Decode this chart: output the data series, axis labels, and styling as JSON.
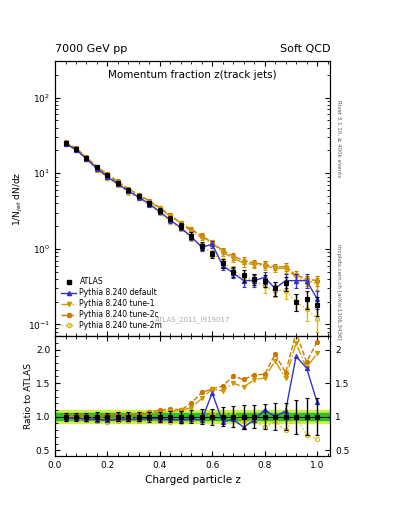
{
  "title_top_left": "7000 GeV pp",
  "title_top_right": "Soft QCD",
  "plot_title": "Momentum fraction z(track jets)",
  "ylabel_main": "1/N$_{jet}$ dN/dz",
  "ylabel_ratio": "Ratio to ATLAS",
  "xlabel": "Charged particle z",
  "watermark": "ATLAS_2011_I919017",
  "right_label": "Rivet 3.1.10, ≥ 400k events",
  "right_label2": "mcplots.cern.ch [arXiv:1306.3436]",
  "z_values": [
    0.04,
    0.08,
    0.12,
    0.16,
    0.2,
    0.24,
    0.28,
    0.32,
    0.36,
    0.4,
    0.44,
    0.48,
    0.52,
    0.56,
    0.6,
    0.64,
    0.68,
    0.72,
    0.76,
    0.8,
    0.84,
    0.88,
    0.92,
    0.96,
    1.0
  ],
  "atlas_y": [
    25.0,
    21.0,
    16.0,
    12.0,
    9.5,
    7.5,
    6.0,
    5.0,
    4.0,
    3.2,
    2.5,
    2.0,
    1.5,
    1.1,
    0.85,
    0.65,
    0.5,
    0.45,
    0.4,
    0.38,
    0.3,
    0.35,
    0.2,
    0.22,
    0.18
  ],
  "atlas_yerr": [
    1.5,
    1.2,
    1.0,
    0.8,
    0.6,
    0.5,
    0.4,
    0.35,
    0.3,
    0.25,
    0.2,
    0.18,
    0.15,
    0.12,
    0.1,
    0.09,
    0.08,
    0.08,
    0.07,
    0.07,
    0.06,
    0.07,
    0.05,
    0.06,
    0.05
  ],
  "pythia_default_y": [
    24.5,
    20.5,
    15.5,
    11.5,
    9.0,
    7.2,
    5.8,
    4.8,
    3.9,
    3.1,
    2.4,
    1.9,
    1.45,
    1.05,
    1.15,
    0.6,
    0.48,
    0.38,
    0.38,
    0.42,
    0.3,
    0.38,
    0.38,
    0.38,
    0.22
  ],
  "pythia_default_yerr": [
    1.2,
    1.0,
    0.9,
    0.7,
    0.55,
    0.45,
    0.38,
    0.32,
    0.28,
    0.22,
    0.18,
    0.15,
    0.13,
    0.1,
    0.12,
    0.08,
    0.07,
    0.07,
    0.07,
    0.08,
    0.06,
    0.08,
    0.08,
    0.08,
    0.06
  ],
  "tune1_y": [
    25.0,
    21.0,
    15.8,
    11.8,
    9.3,
    7.4,
    5.9,
    5.0,
    4.2,
    3.4,
    2.7,
    2.2,
    1.7,
    1.4,
    1.2,
    0.9,
    0.75,
    0.65,
    0.62,
    0.6,
    0.55,
    0.55,
    0.42,
    0.38,
    0.35
  ],
  "tune1_yerr": [
    1.2,
    1.0,
    0.9,
    0.7,
    0.55,
    0.45,
    0.38,
    0.32,
    0.28,
    0.22,
    0.18,
    0.15,
    0.13,
    0.1,
    0.1,
    0.09,
    0.08,
    0.07,
    0.07,
    0.07,
    0.06,
    0.07,
    0.06,
    0.06,
    0.06
  ],
  "tune2c_y": [
    25.5,
    21.5,
    16.2,
    12.2,
    9.7,
    7.8,
    6.2,
    5.2,
    4.3,
    3.5,
    2.8,
    2.2,
    1.8,
    1.5,
    1.2,
    0.95,
    0.8,
    0.7,
    0.65,
    0.62,
    0.58,
    0.58,
    0.45,
    0.4,
    0.38
  ],
  "tune2c_yerr": [
    1.2,
    1.0,
    0.9,
    0.7,
    0.55,
    0.45,
    0.38,
    0.32,
    0.28,
    0.22,
    0.18,
    0.15,
    0.13,
    0.1,
    0.1,
    0.09,
    0.08,
    0.07,
    0.07,
    0.07,
    0.06,
    0.07,
    0.06,
    0.06,
    0.06
  ],
  "tune2m_y": [
    24.0,
    20.2,
    15.2,
    11.2,
    8.8,
    7.0,
    5.6,
    4.7,
    3.8,
    3.0,
    2.3,
    1.85,
    1.4,
    1.1,
    0.88,
    0.68,
    0.52,
    0.42,
    0.38,
    0.32,
    0.28,
    0.28,
    0.2,
    0.16,
    0.12
  ],
  "tune2m_yerr": [
    1.2,
    1.0,
    0.9,
    0.7,
    0.55,
    0.45,
    0.38,
    0.32,
    0.28,
    0.22,
    0.18,
    0.15,
    0.13,
    0.1,
    0.09,
    0.08,
    0.07,
    0.06,
    0.07,
    0.06,
    0.05,
    0.06,
    0.05,
    0.05,
    0.04
  ],
  "atlas_band_inner": 0.05,
  "atlas_band_outer": 0.1,
  "band_color_inner": "#22bb22",
  "band_color_outer": "#ccee44",
  "colors": {
    "atlas": "#000000",
    "default": "#3333cc",
    "tune1": "#cc9900",
    "tune2c": "#cc7700",
    "tune2m": "#ddbb00"
  },
  "xlim": [
    0.0,
    1.05
  ],
  "ylim_main": [
    0.07,
    300
  ],
  "ylim_ratio": [
    0.42,
    2.2
  ],
  "legend_labels": [
    "ATLAS",
    "Pythia 8.240 default",
    "Pythia 8.240 tune-1",
    "Pythia 8.240 tune-2c",
    "Pythia 8.240 tune-2m"
  ]
}
